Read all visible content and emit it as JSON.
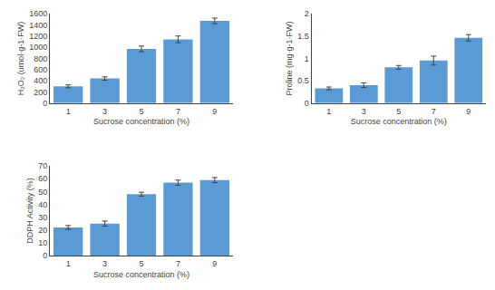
{
  "chart_data": [
    {
      "type": "bar",
      "categories": [
        1,
        3,
        5,
        7,
        9
      ],
      "values": [
        300,
        440,
        970,
        1140,
        1470
      ],
      "errors": [
        25,
        30,
        50,
        60,
        50
      ],
      "color": "#5b9bd5",
      "xlabel": "Sucrose concentration (%)",
      "ylabel": "H₂O₂ (umol·g-1·FW)",
      "ylim": [
        0,
        1600
      ],
      "yticks": [
        0,
        200,
        400,
        600,
        800,
        1000,
        1200,
        1400,
        1600
      ],
      "grid": false
    },
    {
      "type": "bar",
      "categories": [
        1,
        3,
        5,
        7,
        9
      ],
      "values": [
        0.33,
        0.4,
        0.8,
        0.95,
        1.46
      ],
      "errors": [
        0.03,
        0.05,
        0.04,
        0.1,
        0.07
      ],
      "color": "#5b9bd5",
      "xlabel": "Sucrose concentration (%)",
      "ylabel": "Proline (mg·g-1·FW)",
      "ylim": [
        0,
        2
      ],
      "yticks": [
        0,
        0.5,
        1,
        1.5,
        2
      ],
      "grid": false
    },
    {
      "type": "bar",
      "categories": [
        1,
        3,
        5,
        7,
        9
      ],
      "values": [
        22,
        25,
        48,
        57,
        59
      ],
      "errors": [
        1.5,
        2.0,
        1.5,
        2.0,
        2.0
      ],
      "color": "#5b9bd5",
      "xlabel": "Sucrose concentration (%)",
      "ylabel": "DDPH Activity (%)",
      "ylim": [
        0,
        70
      ],
      "yticks": [
        0,
        10,
        20,
        30,
        40,
        50,
        60,
        70
      ],
      "grid": false
    }
  ]
}
